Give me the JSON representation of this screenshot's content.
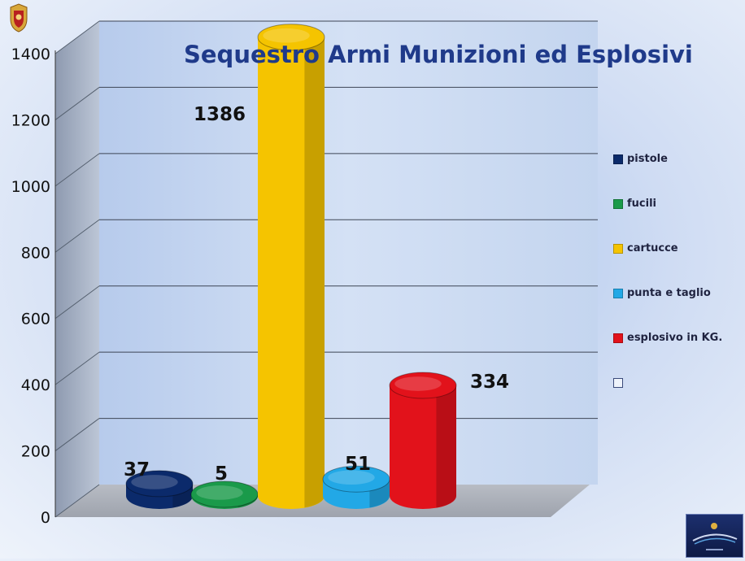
{
  "chart_data": {
    "type": "bar",
    "title": "Sequestro Armi Munizioni ed Esplosivi",
    "ylim": [
      0,
      1400
    ],
    "yticks": [
      0,
      200,
      400,
      600,
      800,
      1000,
      1200,
      1400
    ],
    "grid": true,
    "legend_position": "right",
    "series": [
      {
        "name": "pistole",
        "value": 37,
        "label": "37",
        "color": "#0b2a6b"
      },
      {
        "name": "fucili",
        "value": 5,
        "label": "5",
        "color": "#1a9a4a"
      },
      {
        "name": "cartucce",
        "value": 1386,
        "label": "1386",
        "color": "#f5c400"
      },
      {
        "name": "punta e taglio",
        "value": 51,
        "label": "51",
        "color": "#22a8e6"
      },
      {
        "name": "esplosivo in KG.",
        "value": 334,
        "label": "334",
        "color": "#e2121b"
      }
    ],
    "legend": [
      {
        "label": "pistole",
        "color": "#0b2a6b"
      },
      {
        "label": "fucili",
        "color": "#1a9a4a"
      },
      {
        "label": "cartucce",
        "color": "#f5c400"
      },
      {
        "label": "punta e taglio",
        "color": "#22a8e6"
      },
      {
        "label": "esplosivo in KG.",
        "color": "#e2121b"
      },
      {
        "label": "",
        "color": ""
      }
    ]
  },
  "logos": {
    "top_left": "police-emblem-icon",
    "bottom_right": "commemorative-badge"
  }
}
